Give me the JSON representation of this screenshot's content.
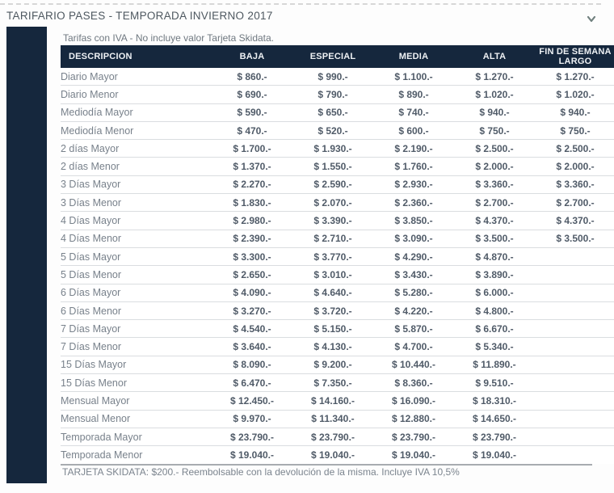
{
  "header": {
    "title": "TARIFARIO PASES - TEMPORADA INVIERNO 2017",
    "collapse_icon": "chevron-down-icon"
  },
  "note": "Tarifas con IVA - No incluye valor Tarjeta Skidata.",
  "table": {
    "columns": [
      "DESCRIPCION",
      "BAJA",
      "ESPECIAL",
      "MEDIA",
      "ALTA",
      "FIN DE SEMANA LARGO"
    ],
    "rows": [
      [
        "Diario Mayor",
        "$ 860.-",
        "$ 990.-",
        "$ 1.100.-",
        "$ 1.270.-",
        "$ 1.270.-"
      ],
      [
        "Diario Menor",
        "$ 690.-",
        "$ 790.-",
        "$ 890.-",
        "$ 1.020.-",
        "$ 1.020.-"
      ],
      [
        "Mediodía Mayor",
        "$ 590.-",
        "$ 650.-",
        "$ 740.-",
        "$ 940.-",
        "$ 940.-"
      ],
      [
        "Mediodía Menor",
        "$ 470.-",
        "$ 520.-",
        "$ 600.-",
        "$ 750.-",
        "$ 750.-"
      ],
      [
        "2 días Mayor",
        "$ 1.700.-",
        "$ 1.930.-",
        "$ 2.190.-",
        "$ 2.500.-",
        "$ 2.500.-"
      ],
      [
        "2 días Menor",
        "$ 1.370.-",
        "$ 1.550.-",
        "$ 1.760.-",
        "$ 2.000.-",
        "$ 2.000.-"
      ],
      [
        "3 Días Mayor",
        "$ 2.270.-",
        "$ 2.590.-",
        "$ 2.930.-",
        "$ 3.360.-",
        "$ 3.360.-"
      ],
      [
        "3 Días Menor",
        "$ 1.830.-",
        "$ 2.070.-",
        "$ 2.360.-",
        "$ 2.700.-",
        "$ 2.700.-"
      ],
      [
        "4 Días Mayor",
        "$ 2.980.-",
        "$ 3.390.-",
        "$ 3.850.-",
        "$ 4.370.-",
        "$ 4.370.-"
      ],
      [
        "4 Días Menor",
        "$ 2.390.-",
        "$ 2.710.-",
        "$ 3.090.-",
        "$ 3.500.-",
        "$ 3.500.-"
      ],
      [
        "5 Días Mayor",
        "$ 3.300.-",
        "$ 3.770.-",
        "$ 4.290.-",
        "$ 4.870.-",
        ""
      ],
      [
        "5 Días Menor",
        "$ 2.650.-",
        "$ 3.010.-",
        "$ 3.430.-",
        "$ 3.890.-",
        ""
      ],
      [
        "6 Días Mayor",
        "$ 4.090.-",
        "$ 4.640.-",
        "$ 5.280.-",
        "$ 6.000.-",
        ""
      ],
      [
        "6 Días Menor",
        "$ 3.270.-",
        "$ 3.720.-",
        "$ 4.220.-",
        "$ 4.800.-",
        ""
      ],
      [
        "7 Días Mayor",
        "$ 4.540.-",
        "$ 5.150.-",
        "$ 5.870.-",
        "$ 6.670.-",
        ""
      ],
      [
        "7 Días Menor",
        "$ 3.640.-",
        "$ 4.130.-",
        "$ 4.700.-",
        "$ 5.340.-",
        ""
      ],
      [
        "15 Días Mayor",
        "$ 8.090.-",
        "$ 9.200.-",
        "$ 10.440.-",
        "$ 11.890.-",
        ""
      ],
      [
        "15 Días Menor",
        "$ 6.470.-",
        "$ 7.350.-",
        "$ 8.360.-",
        "$ 9.510.-",
        ""
      ],
      [
        "Mensual Mayor",
        "$ 12.450.-",
        "$ 14.160.-",
        "$ 16.090.-",
        "$ 18.310.-",
        ""
      ],
      [
        "Mensual Menor",
        "$ 9.970.-",
        "$ 11.340.-",
        "$ 12.880.-",
        "$ 14.650.-",
        ""
      ],
      [
        "Temporada Mayor",
        "$ 23.790.-",
        "$ 23.790.-",
        "$ 23.790.-",
        "$ 23.790.-",
        ""
      ],
      [
        "Temporada Menor",
        "$ 19.040.-",
        "$ 19.040.-",
        "$ 19.040.-",
        "$ 19.040.-",
        ""
      ]
    ]
  },
  "footer": "TARJETA SKIDATA: $200.- Reembolsable con la devolución de la misma. Incluye IVA 10,5%",
  "colors": {
    "accent_navy": "#15273d",
    "title_text": "#4e5860",
    "muted_text": "#78818b",
    "value_text": "#505b68",
    "row_separator": "#dadde0",
    "footer_rule": "#a8acb0"
  }
}
